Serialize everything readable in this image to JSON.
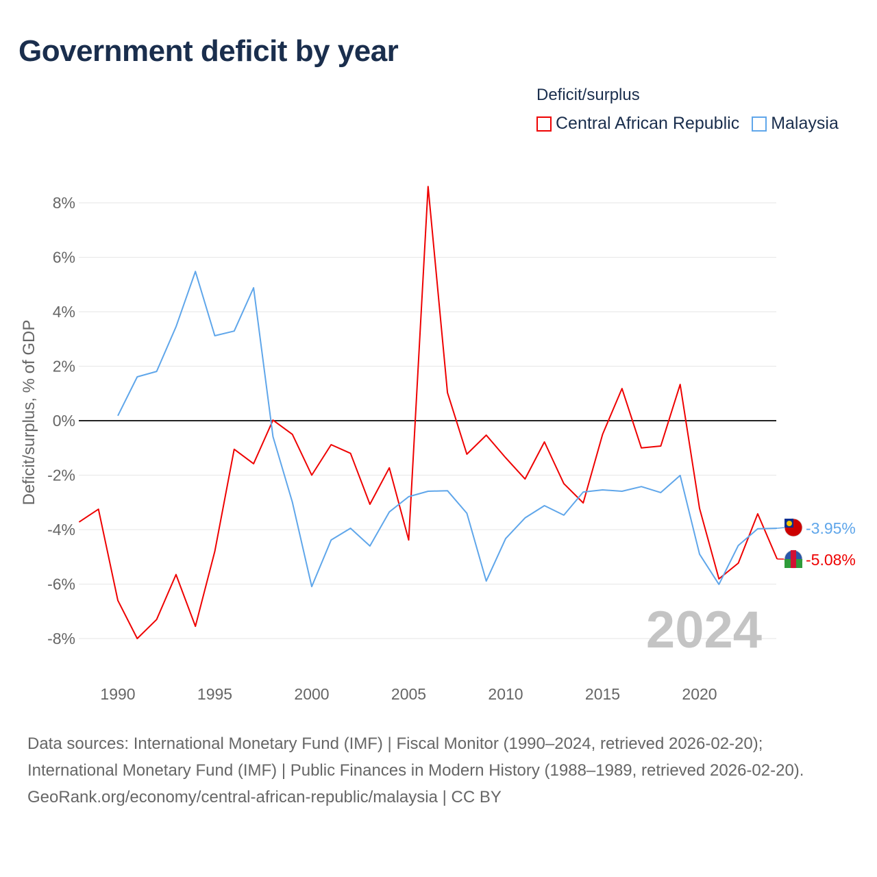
{
  "title": "Government deficit by year",
  "legend": {
    "title": "Deficit/surplus",
    "items": [
      {
        "label": "Central African Republic",
        "color": "#ee0000"
      },
      {
        "label": "Malaysia",
        "color": "#5fa6ea"
      }
    ]
  },
  "year_watermark": "2024",
  "footer": {
    "sources": "Data sources: International Monetary Fund (IMF) | Fiscal Monitor (1990–2024, retrieved 2026-02-20); International Monetary Fund (IMF) | Public Finances in Modern History (1988–1989, retrieved 2026-02-20).",
    "attribution": "GeoRank.org/economy/central-african-republic/malaysia | CC BY"
  },
  "chart_data": {
    "type": "line",
    "title": "Government deficit by year",
    "ylabel": "Deficit/surplus, % of GDP",
    "xlabel": "",
    "xlim": [
      1988,
      2024
    ],
    "ylim": [
      -9,
      9
    ],
    "xticks": [
      1990,
      1995,
      2000,
      2005,
      2010,
      2015,
      2020
    ],
    "yticks": [
      8,
      6,
      4,
      2,
      0,
      -2,
      -4,
      -6,
      -8
    ],
    "ytick_labels": [
      "8%",
      "6%",
      "4%",
      "2%",
      "0%",
      "-2%",
      "-4%",
      "-6%",
      "-8%"
    ],
    "grid": true,
    "legend_position": "top-right",
    "series": [
      {
        "name": "Central African Republic",
        "color": "#ee0000",
        "end_label": "-5.08%",
        "start_year": 1988,
        "values": [
          -3.72,
          -3.25,
          -6.6,
          -8.0,
          -7.3,
          -5.65,
          -7.55,
          -4.8,
          -1.05,
          -1.58,
          0.02,
          -0.5,
          -2.0,
          -0.88,
          -1.2,
          -3.07,
          -1.73,
          -4.38,
          8.6,
          1.03,
          -1.23,
          -0.53,
          -1.36,
          -2.14,
          -0.78,
          -2.31,
          -3.02,
          -0.5,
          1.18,
          -1.0,
          -0.93,
          1.33,
          -3.22,
          -5.81,
          -5.23,
          -3.42,
          -5.08
        ]
      },
      {
        "name": "Malaysia",
        "color": "#5fa6ea",
        "end_label": "-3.95%",
        "start_year": 1990,
        "values": [
          0.18,
          1.61,
          1.81,
          3.45,
          5.48,
          3.12,
          3.29,
          4.88,
          -0.58,
          -2.99,
          -6.09,
          -4.38,
          -3.95,
          -4.6,
          -3.35,
          -2.79,
          -2.59,
          -2.57,
          -3.4,
          -5.89,
          -4.33,
          -3.57,
          -3.12,
          -3.47,
          -2.62,
          -2.54,
          -2.59,
          -2.42,
          -2.64,
          -2.01,
          -4.9,
          -6.01,
          -4.58,
          -3.97,
          -3.95
        ]
      }
    ]
  }
}
